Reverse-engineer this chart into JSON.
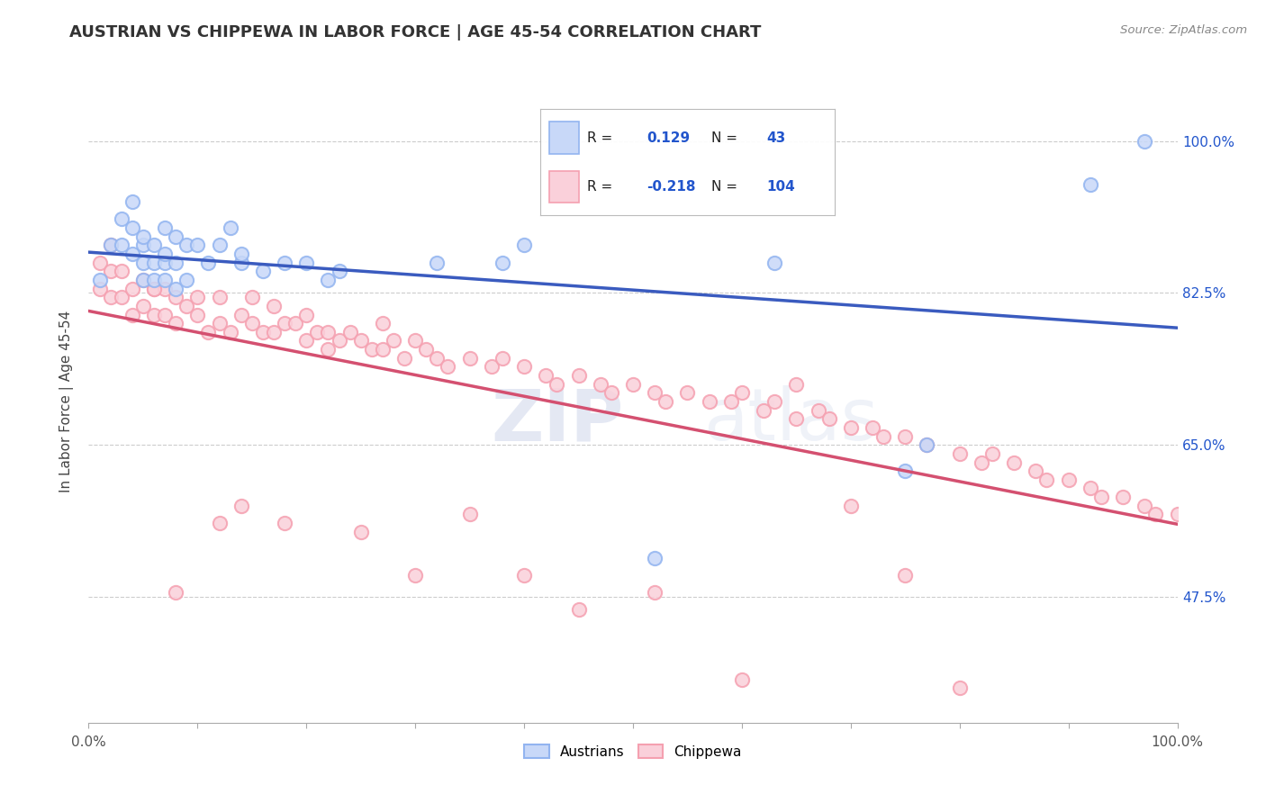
{
  "title": "AUSTRIAN VS CHIPPEWA IN LABOR FORCE | AGE 45-54 CORRELATION CHART",
  "source_text": "Source: ZipAtlas.com",
  "ylabel": "In Labor Force | Age 45-54",
  "xlim": [
    0.0,
    1.0
  ],
  "ylim": [
    0.33,
    1.07
  ],
  "ytick_positions": [
    0.475,
    0.65,
    0.825,
    1.0
  ],
  "ytick_labels": [
    "47.5%",
    "65.0%",
    "82.5%",
    "100.0%"
  ],
  "legend_R_austrians": "0.129",
  "legend_N_austrians": "43",
  "legend_R_chippewa": "-0.218",
  "legend_N_chippewa": "104",
  "austrians_color": "#92b4f0",
  "chippewa_color": "#f5a0b0",
  "austrians_fill": "#c8d8f8",
  "chippewa_fill": "#fad0da",
  "trendline_blue": "#3a5bbf",
  "trendline_pink": "#d45070",
  "grid_color": "#cccccc",
  "legend_value_color": "#2255cc",
  "background_color": "#ffffff",
  "austrians_x": [
    0.01,
    0.02,
    0.03,
    0.03,
    0.04,
    0.04,
    0.04,
    0.05,
    0.05,
    0.05,
    0.05,
    0.06,
    0.06,
    0.06,
    0.07,
    0.07,
    0.07,
    0.07,
    0.08,
    0.08,
    0.08,
    0.09,
    0.09,
    0.1,
    0.11,
    0.12,
    0.13,
    0.14,
    0.14,
    0.16,
    0.18,
    0.2,
    0.22,
    0.23,
    0.32,
    0.38,
    0.4,
    0.52,
    0.63,
    0.75,
    0.77,
    0.92,
    0.97
  ],
  "austrians_y": [
    0.84,
    0.88,
    0.88,
    0.91,
    0.87,
    0.9,
    0.93,
    0.84,
    0.86,
    0.88,
    0.89,
    0.84,
    0.86,
    0.88,
    0.84,
    0.86,
    0.87,
    0.9,
    0.83,
    0.86,
    0.89,
    0.84,
    0.88,
    0.88,
    0.86,
    0.88,
    0.9,
    0.86,
    0.87,
    0.85,
    0.86,
    0.86,
    0.84,
    0.85,
    0.86,
    0.86,
    0.88,
    0.52,
    0.86,
    0.62,
    0.65,
    0.95,
    1.0
  ],
  "chippewa_x": [
    0.01,
    0.01,
    0.02,
    0.02,
    0.03,
    0.03,
    0.04,
    0.04,
    0.05,
    0.05,
    0.06,
    0.06,
    0.07,
    0.07,
    0.08,
    0.08,
    0.09,
    0.1,
    0.1,
    0.11,
    0.12,
    0.12,
    0.13,
    0.14,
    0.15,
    0.15,
    0.16,
    0.17,
    0.17,
    0.18,
    0.19,
    0.2,
    0.2,
    0.21,
    0.22,
    0.23,
    0.24,
    0.25,
    0.26,
    0.27,
    0.27,
    0.28,
    0.29,
    0.3,
    0.31,
    0.32,
    0.33,
    0.35,
    0.37,
    0.38,
    0.4,
    0.42,
    0.43,
    0.45,
    0.47,
    0.48,
    0.5,
    0.52,
    0.53,
    0.55,
    0.57,
    0.59,
    0.6,
    0.62,
    0.63,
    0.65,
    0.67,
    0.68,
    0.7,
    0.72,
    0.73,
    0.75,
    0.77,
    0.8,
    0.82,
    0.83,
    0.85,
    0.87,
    0.88,
    0.9,
    0.92,
    0.93,
    0.95,
    0.97,
    0.98,
    1.0,
    0.02,
    0.06,
    0.08,
    0.12,
    0.14,
    0.18,
    0.22,
    0.25,
    0.3,
    0.35,
    0.4,
    0.45,
    0.52,
    0.6,
    0.65,
    0.7,
    0.75,
    0.8
  ],
  "chippewa_y": [
    0.83,
    0.86,
    0.82,
    0.85,
    0.82,
    0.85,
    0.8,
    0.83,
    0.81,
    0.84,
    0.8,
    0.83,
    0.8,
    0.83,
    0.79,
    0.82,
    0.81,
    0.8,
    0.82,
    0.78,
    0.79,
    0.82,
    0.78,
    0.8,
    0.79,
    0.82,
    0.78,
    0.78,
    0.81,
    0.79,
    0.79,
    0.77,
    0.8,
    0.78,
    0.78,
    0.77,
    0.78,
    0.77,
    0.76,
    0.76,
    0.79,
    0.77,
    0.75,
    0.77,
    0.76,
    0.75,
    0.74,
    0.75,
    0.74,
    0.75,
    0.74,
    0.73,
    0.72,
    0.73,
    0.72,
    0.71,
    0.72,
    0.71,
    0.7,
    0.71,
    0.7,
    0.7,
    0.71,
    0.69,
    0.7,
    0.68,
    0.69,
    0.68,
    0.67,
    0.67,
    0.66,
    0.66,
    0.65,
    0.64,
    0.63,
    0.64,
    0.63,
    0.62,
    0.61,
    0.61,
    0.6,
    0.59,
    0.59,
    0.58,
    0.57,
    0.57,
    0.88,
    0.83,
    0.48,
    0.56,
    0.58,
    0.56,
    0.76,
    0.55,
    0.5,
    0.57,
    0.5,
    0.46,
    0.48,
    0.38,
    0.72,
    0.58,
    0.5,
    0.37
  ]
}
